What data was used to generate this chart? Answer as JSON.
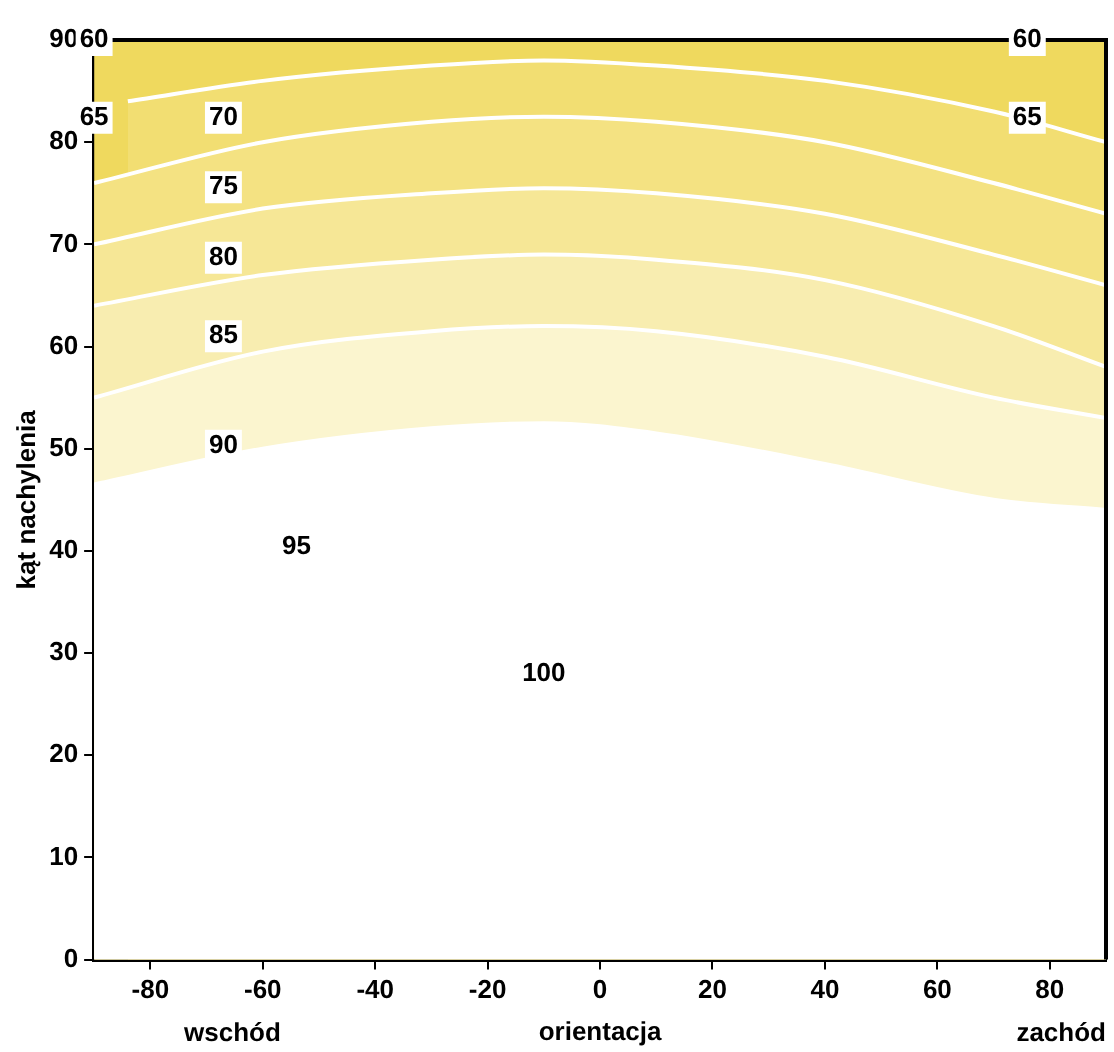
{
  "chart_data": {
    "type": "area",
    "xlabel": "orientacja",
    "ylabel": "kąt nachylenia",
    "xlim": [
      -90,
      90
    ],
    "ylim": [
      0,
      90
    ],
    "xticks": [
      -80,
      -60,
      -40,
      -20,
      0,
      20,
      40,
      60,
      80
    ],
    "yticks": [
      0,
      10,
      20,
      30,
      40,
      50,
      60,
      70,
      80,
      90
    ],
    "legend": false,
    "x": [
      -90,
      -60,
      -30,
      -10,
      10,
      40,
      70,
      90
    ],
    "series": [
      {
        "color": "#efd95e",
        "x": [
          -90,
          90
        ],
        "values": [
          90,
          90
        ]
      },
      {
        "color": "#f2de72",
        "x": [
          -84,
          -60,
          -30,
          -10,
          10,
          40,
          70,
          90
        ],
        "values": [
          84,
          86,
          87.5,
          88,
          87.5,
          86,
          83,
          80
        ]
      },
      {
        "color": "#f4e282",
        "values": [
          76,
          80,
          82,
          82.5,
          82,
          80,
          76,
          73
        ]
      },
      {
        "color": "#f6e796",
        "values": [
          70,
          73.5,
          75,
          75.5,
          75,
          73,
          69,
          66
        ]
      },
      {
        "color": "#f8edb0",
        "values": [
          64,
          67,
          68.5,
          69,
          68.5,
          66.5,
          62,
          58
        ]
      },
      {
        "color": "#fbf5cf",
        "values": [
          55,
          59.5,
          61.5,
          62,
          61.5,
          59,
          55,
          53
        ]
      },
      {
        "color": "#ffffff",
        "values": [
          46.5,
          50,
          52,
          52.5,
          51.5,
          48.5,
          45,
          44
        ]
      }
    ],
    "annotations": [
      {
        "text": "60",
        "x": -90,
        "y": 90
      },
      {
        "text": "60",
        "x": 76,
        "y": 90
      },
      {
        "text": "65",
        "x": -90,
        "y": 82.4
      },
      {
        "text": "65",
        "x": 76,
        "y": 82.4
      },
      {
        "text": "70",
        "x": -67,
        "y": 82.4
      },
      {
        "text": "75",
        "x": -67,
        "y": 75.6
      },
      {
        "text": "80",
        "x": -67,
        "y": 68.7
      },
      {
        "text": "85",
        "x": -67,
        "y": 61
      },
      {
        "text": "90",
        "x": -67,
        "y": 50.3
      },
      {
        "text": "95",
        "x": -54,
        "y": 40.4
      },
      {
        "text": "100",
        "x": -10,
        "y": 28
      },
      "wschód",
      "zachód"
    ]
  }
}
